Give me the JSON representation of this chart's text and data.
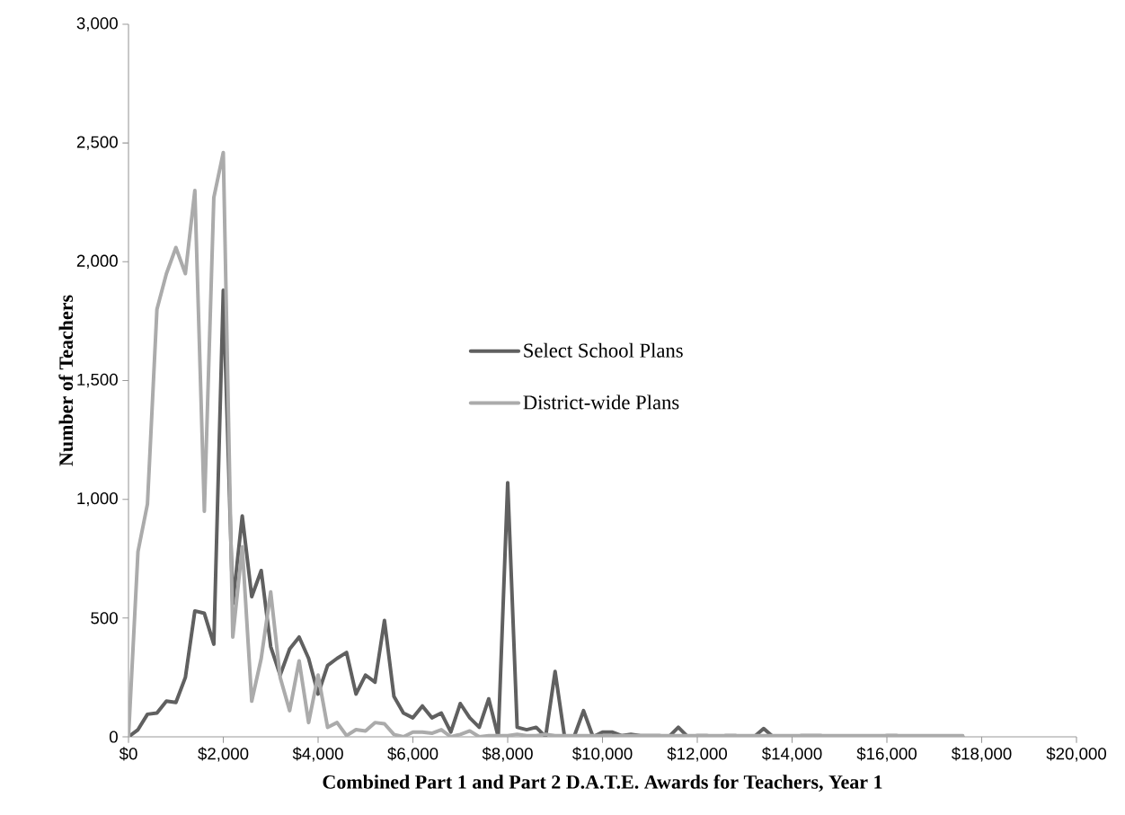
{
  "chart_data": {
    "type": "line",
    "xlabel": "Combined Part 1 and Part 2 D.A.T.E. Awards for Teachers, Year 1",
    "ylabel": "Number of Teachers",
    "xlim": [
      0,
      20000
    ],
    "ylim": [
      0,
      3000
    ],
    "xticks": [
      {
        "value": 0,
        "label": "$0"
      },
      {
        "value": 2000,
        "label": "$2,000"
      },
      {
        "value": 4000,
        "label": "$4,000"
      },
      {
        "value": 6000,
        "label": "$6,000"
      },
      {
        "value": 8000,
        "label": "$8,000"
      },
      {
        "value": 10000,
        "label": "$10,000"
      },
      {
        "value": 12000,
        "label": "$12,000"
      },
      {
        "value": 14000,
        "label": "$14,000"
      },
      {
        "value": 16000,
        "label": "$16,000"
      },
      {
        "value": 18000,
        "label": "$18,000"
      },
      {
        "value": 20000,
        "label": "$20,000"
      }
    ],
    "yticks": [
      0,
      500,
      {
        "value": 1000,
        "label": "1,000"
      },
      {
        "value": 1500,
        "label": "1,500"
      },
      {
        "value": 2000,
        "label": "2,000"
      },
      {
        "value": 2500,
        "label": "2,500"
      },
      {
        "value": 3000,
        "label": "3,000"
      }
    ],
    "x": [
      0,
      200,
      400,
      600,
      800,
      1000,
      1200,
      1400,
      1600,
      1800,
      2000,
      2200,
      2400,
      2600,
      2800,
      3000,
      3200,
      3400,
      3600,
      3800,
      4000,
      4200,
      4400,
      4600,
      4800,
      5000,
      5200,
      5400,
      5600,
      5800,
      6000,
      6200,
      6400,
      6600,
      6800,
      7000,
      7200,
      7400,
      7600,
      7800,
      8000,
      8200,
      8400,
      8600,
      8800,
      9000,
      9200,
      9400,
      9600,
      9800,
      10000,
      10200,
      10400,
      10600,
      10800,
      11000,
      11200,
      11400,
      11600,
      11800,
      12000,
      12200,
      12400,
      12600,
      12800,
      13000,
      13200,
      13400,
      13600,
      13800,
      14000,
      14200,
      14400,
      14600,
      14800,
      15000,
      15200,
      15400,
      15600,
      15800,
      16000,
      16200,
      16400,
      16600,
      16800,
      17000,
      17200,
      17400,
      17600
    ],
    "series": [
      {
        "name": "Select School Plans",
        "color": "#606060",
        "values": [
          0,
          30,
          95,
          100,
          150,
          145,
          250,
          530,
          520,
          390,
          1880,
          560,
          930,
          590,
          700,
          380,
          260,
          370,
          420,
          330,
          180,
          300,
          330,
          355,
          180,
          260,
          230,
          490,
          170,
          100,
          80,
          130,
          80,
          100,
          20,
          140,
          80,
          40,
          160,
          0,
          1070,
          40,
          30,
          40,
          0,
          275,
          0,
          0,
          110,
          0,
          20,
          20,
          5,
          10,
          5,
          5,
          5,
          0,
          40,
          0,
          5,
          5,
          0,
          5,
          5,
          0,
          0,
          35,
          0,
          0,
          0,
          5,
          5,
          5,
          0,
          0,
          0,
          0,
          0,
          0,
          5,
          5,
          0,
          0,
          0,
          0,
          0,
          0,
          0
        ]
      },
      {
        "name": "District-wide Plans",
        "color": "#ababab",
        "values": [
          0,
          780,
          980,
          1800,
          1950,
          2060,
          1950,
          2300,
          950,
          2270,
          2460,
          420,
          800,
          150,
          330,
          610,
          250,
          110,
          320,
          60,
          260,
          40,
          60,
          5,
          30,
          25,
          60,
          55,
          10,
          0,
          20,
          20,
          15,
          30,
          0,
          10,
          25,
          0,
          5,
          5,
          5,
          10,
          5,
          5,
          10,
          5,
          5,
          5,
          5,
          5,
          5,
          5,
          5,
          5,
          5,
          5,
          5,
          5,
          5,
          5,
          5,
          5,
          5,
          5,
          5,
          5,
          5,
          5,
          5,
          5,
          5,
          5,
          5,
          5,
          5,
          5,
          5,
          5,
          5,
          5,
          5,
          5,
          5,
          5,
          5,
          5,
          5,
          5,
          5
        ]
      }
    ],
    "legend": "center",
    "grid": false,
    "marker": "none",
    "line_style": "solid"
  }
}
